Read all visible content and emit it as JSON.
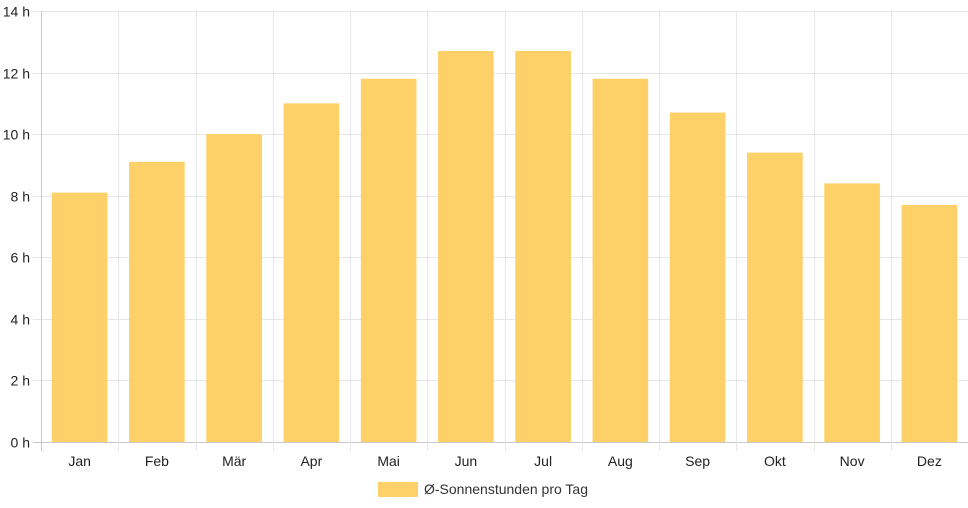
{
  "chart_data": {
    "type": "bar",
    "categories": [
      "Jan",
      "Feb",
      "Mär",
      "Apr",
      "Mai",
      "Jun",
      "Jul",
      "Aug",
      "Sep",
      "Okt",
      "Nov",
      "Dez"
    ],
    "series": [
      {
        "name": "Ø-Sonnenstunden pro Tag",
        "values": [
          8.1,
          9.1,
          10.0,
          11.0,
          11.8,
          12.7,
          12.7,
          11.8,
          10.7,
          9.4,
          8.4,
          7.7
        ]
      }
    ],
    "y_ticks": [
      "0 h",
      "2 h",
      "4 h",
      "6 h",
      "8 h",
      "10 h",
      "12 h",
      "14 h"
    ],
    "ylim": [
      0,
      14
    ],
    "grid": true,
    "legend_position": "bottom",
    "bar_color": "#fdd068"
  }
}
